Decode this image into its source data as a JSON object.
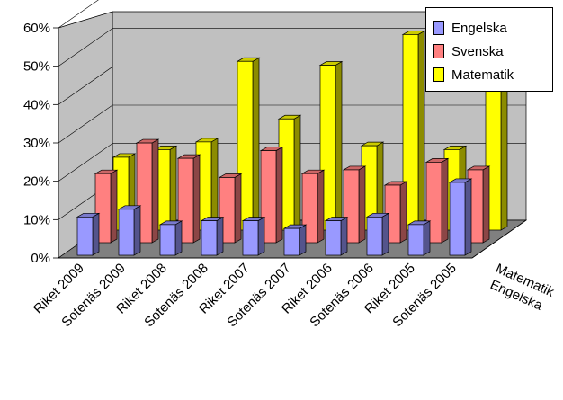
{
  "chart_data": {
    "type": "bar",
    "title": "",
    "xlabel": "",
    "ylabel": "",
    "ylim": [
      0,
      60
    ],
    "yticks": [
      "0%",
      "10%",
      "20%",
      "30%",
      "40%",
      "50%",
      "60%"
    ],
    "y_unit": "%",
    "categories": [
      "Riket 2009",
      "Sotenäs 2009",
      "Riket 2008",
      "Sotenäs 2008",
      "Riket 2007",
      "Sotenäs 2007",
      "Riket 2006",
      "Sotenäs 2006",
      "Riket 2005",
      "Sotenäs 2005"
    ],
    "depth_labels": [
      "Matematik",
      "Engelska"
    ],
    "series": [
      {
        "name": "Engelska",
        "color": "#9999ff",
        "values": [
          10,
          12,
          8,
          9,
          9,
          7,
          9,
          10,
          8,
          19
        ]
      },
      {
        "name": "Svenska",
        "color": "#ff8080",
        "values": [
          18,
          26,
          22,
          17,
          24,
          18,
          19,
          15,
          21,
          19
        ]
      },
      {
        "name": "Matematik",
        "color": "#ffff00",
        "values": [
          19,
          21,
          23,
          44,
          29,
          43,
          22,
          51,
          21,
          41
        ]
      }
    ],
    "grid": true,
    "legend_position": "top-right"
  }
}
